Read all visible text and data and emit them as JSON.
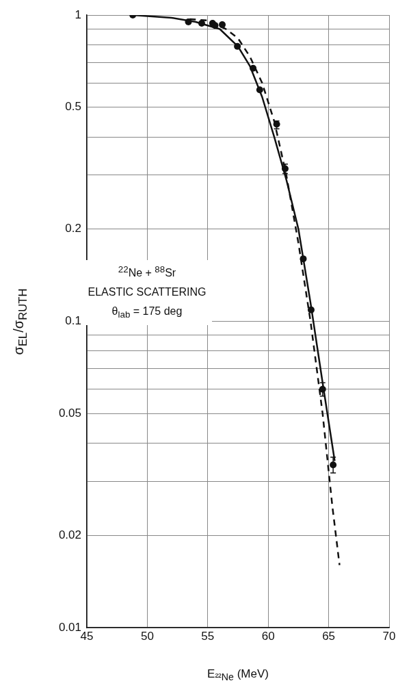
{
  "chart_data": {
    "type": "scatter",
    "xlabel": "E$_{²²Ne}$ (MeV)",
    "ylabel": "σ$_{EL}$/σ$_{RUTH}$",
    "annotations": [
      "$^{22}$Ne + $^{88}$Sr",
      "ELASTIC SCATTERING",
      "θ$_{lab}$ = 175 deg"
    ],
    "xlim": [
      45,
      70
    ],
    "xticks": [
      45,
      50,
      55,
      60,
      65,
      70
    ],
    "ylim": [
      0.01,
      1
    ],
    "log": "y",
    "grid": true,
    "yticks": [
      {
        "value": 0.01,
        "label": "0.01"
      },
      {
        "value": 0.02,
        "label": "0.02"
      },
      {
        "value": 0.03,
        "label": null
      },
      {
        "value": 0.04,
        "label": null
      },
      {
        "value": 0.05,
        "label": "0.05"
      },
      {
        "value": 0.06,
        "label": null
      },
      {
        "value": 0.07,
        "label": null
      },
      {
        "value": 0.08,
        "label": null
      },
      {
        "value": 0.09,
        "label": null
      },
      {
        "value": 0.1,
        "label": "0.1"
      },
      {
        "value": 0.2,
        "label": "0.2"
      },
      {
        "value": 0.3,
        "label": null
      },
      {
        "value": 0.4,
        "label": null
      },
      {
        "value": 0.5,
        "label": "0.5"
      },
      {
        "value": 0.6,
        "label": null
      },
      {
        "value": 0.7,
        "label": null
      },
      {
        "value": 0.8,
        "label": null
      },
      {
        "value": 0.9,
        "label": null
      },
      {
        "value": 1,
        "label": "1"
      }
    ],
    "series": [
      {
        "type": "line",
        "line_style": "solid",
        "marker": "none",
        "color": "#111111",
        "x": [
          48.8,
          52,
          54,
          56,
          57.5,
          58.5,
          59.5,
          60.5,
          61.5,
          62.5,
          63.5,
          64.5,
          65.5
        ],
        "values": [
          1.0,
          0.98,
          0.95,
          0.9,
          0.79,
          0.68,
          0.54,
          0.4,
          0.29,
          0.2,
          0.115,
          0.063,
          0.035
        ]
      },
      {
        "type": "line",
        "line_style": "dashed",
        "marker": "none",
        "color": "#111111",
        "x": [
          53.5,
          55,
          56.5,
          57.5,
          58.5,
          59.5,
          60.5,
          61.5,
          62.5,
          63.5,
          64.5,
          65.3,
          65.9
        ],
        "values": [
          0.97,
          0.96,
          0.9,
          0.84,
          0.73,
          0.6,
          0.45,
          0.3,
          0.18,
          0.1,
          0.05,
          0.025,
          0.016
        ]
      },
      {
        "type": "scatter",
        "marker": "circle",
        "color": "#111111",
        "x": [
          48.8,
          53.4,
          54.5,
          55.4,
          55.6,
          56.2,
          57.45,
          58.75,
          59.3,
          60.7,
          61.4,
          62.9,
          63.55,
          64.5,
          65.37
        ],
        "values": [
          1.0,
          0.95,
          0.94,
          0.94,
          0.925,
          0.93,
          0.79,
          0.67,
          0.57,
          0.44,
          0.315,
          0.16,
          0.109,
          0.06,
          0.034
        ],
        "errors": [
          null,
          null,
          null,
          null,
          null,
          null,
          null,
          null,
          null,
          [
            0.425,
            0.451
          ],
          [
            0.304,
            0.326
          ],
          null,
          null,
          [
            0.057,
            0.063
          ],
          [
            0.032,
            0.036
          ]
        ]
      }
    ]
  }
}
